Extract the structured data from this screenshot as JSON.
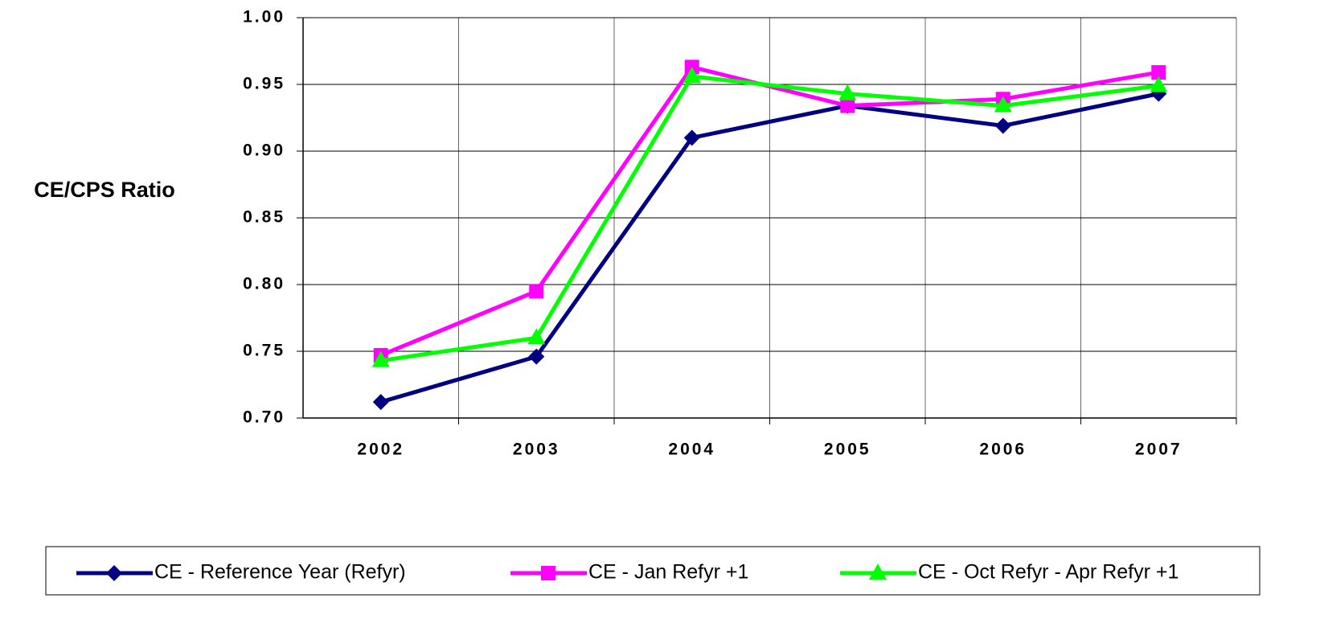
{
  "chart_data": {
    "type": "line",
    "y_label": "CE/CPS Ratio",
    "categories": [
      "2002",
      "2003",
      "2004",
      "2005",
      "2006",
      "2007"
    ],
    "series": [
      {
        "name": "CE - Reference Year (Refyr)",
        "color": "#000080",
        "marker": "diamond",
        "values": [
          0.712,
          0.746,
          0.91,
          0.934,
          0.919,
          0.943
        ]
      },
      {
        "name": "CE - Jan Refyr +1",
        "color": "#ff00ff",
        "marker": "square",
        "values": [
          0.747,
          0.795,
          0.963,
          0.934,
          0.939,
          0.959
        ]
      },
      {
        "name": "CE - Oct Refyr - Apr Refyr +1",
        "color": "#00ff00",
        "marker": "triangle",
        "values": [
          0.743,
          0.76,
          0.956,
          0.943,
          0.934,
          0.949
        ]
      }
    ],
    "ylim": [
      0.7,
      1
    ],
    "yticks": [
      {
        "value": 0.7,
        "label": "0.70"
      },
      0.75,
      {
        "value": 0.8,
        "label": "0.80"
      },
      0.85,
      {
        "value": 0.9,
        "label": "0.90"
      },
      0.95,
      {
        "value": 1,
        "label": "1.00"
      }
    ],
    "grid": true,
    "legend": "bottom"
  }
}
